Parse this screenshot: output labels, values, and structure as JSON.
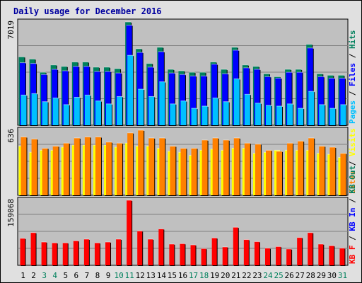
{
  "title": "Daily usage for December 2016",
  "colors": {
    "title": "#0000a0",
    "panel_bg": "#c0c0c0",
    "frame_bg": "#e0e0e0",
    "hits": "#00805c",
    "files": "#0000ff",
    "pages": "#00c0ff",
    "visits": "#ffff00",
    "sites": "#ff8000",
    "kb_in": "#0000ff",
    "kb_out": "#00805c",
    "kb_f": "#ff0000",
    "separator": "#000000",
    "weekend_day": "#00805c",
    "weekday_day": "#000000"
  },
  "chart_data": [
    {
      "type": "bar",
      "ylabel": "7019",
      "ymax": 7019,
      "right_label": [
        "Pages",
        "Files",
        "Hits"
      ],
      "series": [
        {
          "name": "Hits",
          "values": [
            4650,
            4500,
            3600,
            4100,
            4000,
            4300,
            4300,
            3950,
            3950,
            3850,
            7019,
            5200,
            4200,
            5300,
            3800,
            3700,
            3600,
            3600,
            4300,
            3800,
            5300,
            4100,
            4000,
            3500,
            3300,
            3800,
            3800,
            5500,
            3500,
            3400,
            3400
          ]
        },
        {
          "name": "Files",
          "values": [
            4250,
            4200,
            3450,
            3800,
            3700,
            4000,
            4000,
            3650,
            3650,
            3550,
            6800,
            4950,
            3950,
            5000,
            3550,
            3450,
            3350,
            3350,
            4150,
            3500,
            5100,
            3900,
            3800,
            3300,
            3200,
            3600,
            3600,
            5250,
            3300,
            3200,
            3200
          ]
        },
        {
          "name": "Pages",
          "values": [
            2050,
            2150,
            1600,
            1850,
            1400,
            1900,
            2050,
            1650,
            1450,
            1950,
            4750,
            2450,
            1950,
            2950,
            1450,
            1650,
            1150,
            1300,
            1850,
            1600,
            3150,
            2100,
            1500,
            1350,
            1300,
            1450,
            1150,
            2300,
            1400,
            1150,
            1400
          ]
        }
      ]
    },
    {
      "type": "bar",
      "ylabel": "636",
      "ymax": 636,
      "right_label": [
        "Sites",
        "Visits"
      ],
      "series": [
        {
          "name": "Visits",
          "values": [
            480,
            420,
            440,
            440,
            470,
            490,
            490,
            490,
            490,
            470,
            510,
            480,
            480,
            460,
            430,
            420,
            390,
            440,
            450,
            440,
            460,
            460,
            410,
            420,
            440,
            440,
            440,
            440,
            410,
            400,
            370
          ]
        },
        {
          "name": "Sites",
          "values": [
            570,
            550,
            460,
            480,
            510,
            560,
            570,
            570,
            520,
            510,
            610,
            636,
            560,
            560,
            480,
            460,
            460,
            540,
            560,
            540,
            560,
            510,
            500,
            440,
            430,
            510,
            530,
            560,
            480,
            470,
            410
          ]
        }
      ]
    },
    {
      "type": "bar",
      "ylabel": "159068",
      "ymax": 159068,
      "right_label": [
        "KB F",
        "KB In",
        "KB Out"
      ],
      "series": [
        {
          "name": "KB F",
          "values": [
            66000,
            80000,
            57000,
            55000,
            55000,
            60000,
            64000,
            55000,
            57000,
            64000,
            159068,
            84000,
            64000,
            89000,
            52000,
            53000,
            50000,
            41000,
            67000,
            45000,
            93000,
            63000,
            58000,
            42000,
            46000,
            40000,
            68000,
            80000,
            52000,
            48000,
            42000
          ]
        }
      ]
    }
  ],
  "days": [
    "1",
    "2",
    "3",
    "4",
    "5",
    "6",
    "7",
    "8",
    "9",
    "10",
    "11",
    "12",
    "13",
    "14",
    "15",
    "16",
    "17",
    "18",
    "19",
    "20",
    "21",
    "22",
    "23",
    "24",
    "25",
    "26",
    "27",
    "28",
    "29",
    "30",
    "31"
  ],
  "weekend_days": [
    3,
    4,
    10,
    11,
    17,
    18,
    24,
    25,
    31
  ]
}
